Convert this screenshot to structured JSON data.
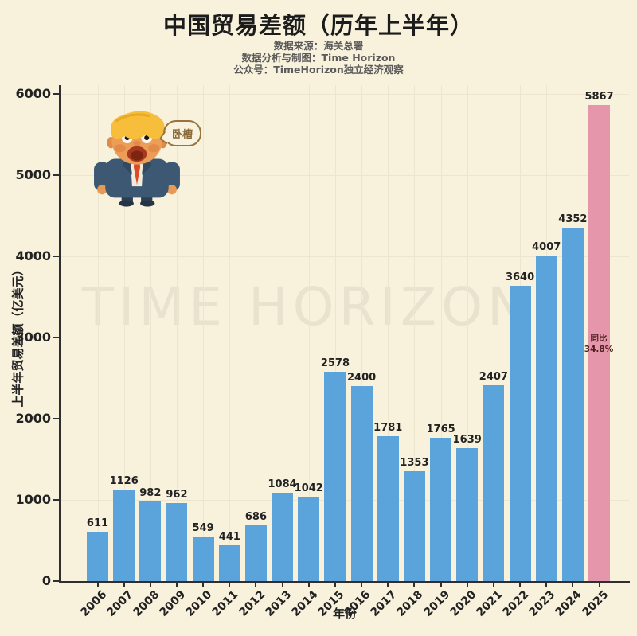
{
  "header": {
    "title": "中国贸易差额（历年上半年）",
    "subtitle_lines": [
      "数据来源：海关总署",
      "数据分析与制图：Time Horizon",
      "公众号：TimeHorizon独立经济观察"
    ]
  },
  "chart_data": {
    "type": "bar",
    "title": "中国贸易差额（历年上半年）",
    "xlabel": "年份",
    "ylabel": "上半年贸易差额（亿美元）",
    "ylim": [
      0,
      6000
    ],
    "yticks": [
      0,
      1000,
      2000,
      3000,
      4000,
      5000,
      6000
    ],
    "categories": [
      "2006",
      "2007",
      "2008",
      "2009",
      "2010",
      "2011",
      "2012",
      "2013",
      "2014",
      "2015",
      "2016",
      "2017",
      "2018",
      "2019",
      "2020",
      "2021",
      "2022",
      "2023",
      "2024",
      "2025"
    ],
    "values": [
      611,
      1126,
      982,
      962,
      549,
      441,
      686,
      1084,
      1042,
      2578,
      2400,
      1781,
      1353,
      1765,
      1639,
      2407,
      3640,
      4007,
      4352,
      5867
    ],
    "highlight_index": 19,
    "grid": true,
    "legend": "none"
  },
  "annotations": {
    "yoy_line1": "同比",
    "yoy_line2": "34.8%",
    "speech_bubble": "卧槽",
    "watermark": "TIME HORIZON"
  },
  "colors": {
    "background": "#F8F1DC",
    "bar": "#5AA3DB",
    "bar_highlight": "#E696AA",
    "axis": "#2F2F2F",
    "title": "#1C1C1C",
    "subtitle": "#5A5A5A",
    "label": "#222222",
    "annotation": "#4D2020"
  }
}
